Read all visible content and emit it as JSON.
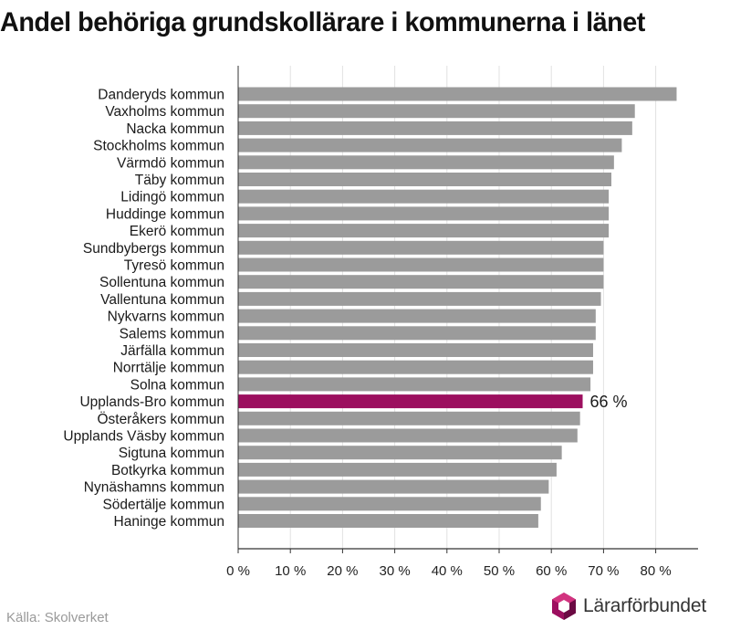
{
  "title": "Andel behöriga grundskollärare i kommunerna i länet",
  "source": "Källa: Skolverket",
  "logo_text": "Lärarförbundet",
  "colors": {
    "bar": "#9b9b9b",
    "highlight": "#9c0f5f",
    "grid": "#e2e2e2",
    "axis": "#333333"
  },
  "chart_data": {
    "type": "bar",
    "orientation": "horizontal",
    "title": "Andel behöriga grundskollärare i kommunerna i länet",
    "xlabel": "",
    "ylabel": "",
    "xlim": [
      0,
      88
    ],
    "ticks": [
      0,
      10,
      20,
      30,
      40,
      50,
      60,
      70,
      80
    ],
    "tick_labels": [
      "0 %",
      "10 %",
      "20 %",
      "30 %",
      "40 %",
      "50 %",
      "60 %",
      "70 %",
      "80 %"
    ],
    "grid": true,
    "categories": [
      "Danderyds kommun",
      "Vaxholms kommun",
      "Nacka kommun",
      "Stockholms kommun",
      "Värmdö kommun",
      "Täby kommun",
      "Lidingö kommun",
      "Huddinge kommun",
      "Ekerö kommun",
      "Sundbybergs kommun",
      "Tyresö kommun",
      "Sollentuna kommun",
      "Vallentuna kommun",
      "Nykvarns kommun",
      "Salems kommun",
      "Järfälla kommun",
      "Norrtälje kommun",
      "Solna kommun",
      "Upplands-Bro kommun",
      "Österåkers kommun",
      "Upplands Väsby kommun",
      "Sigtuna kommun",
      "Botkyrka kommun",
      "Nynäshamns kommun",
      "Södertälje kommun",
      "Haninge kommun"
    ],
    "values": [
      84,
      76,
      75.5,
      73.5,
      72,
      71.5,
      71,
      71,
      71,
      70,
      70,
      70,
      69.5,
      68.5,
      68.5,
      68,
      68,
      67.5,
      66,
      65.5,
      65,
      62,
      61,
      59.5,
      58,
      57.5
    ],
    "highlight_index": 18,
    "highlight_label": "66 %"
  }
}
